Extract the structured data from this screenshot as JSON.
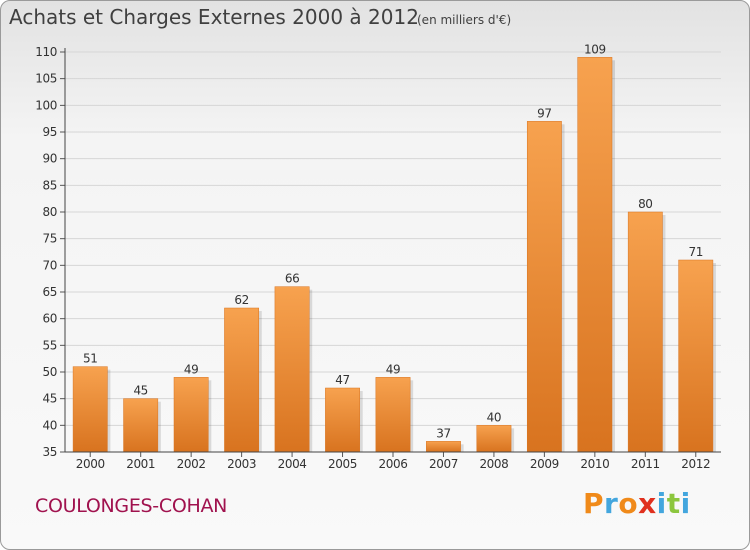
{
  "header": {
    "title": "Achats et Charges Externes 2000 à 2012",
    "subtitle": "(en milliers d'€)"
  },
  "footer": {
    "commune": "COULONGES-COHAN",
    "logo_text": "Proxiti"
  },
  "colors": {
    "bar_light": "#f7a24f",
    "bar_dark": "#d8731f",
    "commune": "#a0124e",
    "logo": [
      "#f08a1a",
      "#43a6de",
      "#f08a1a",
      "#e0301e",
      "#43a6de",
      "#8cc63e",
      "#43a6de"
    ]
  },
  "chart_data": {
    "type": "bar",
    "categories": [
      "2000",
      "2001",
      "2002",
      "2003",
      "2004",
      "2005",
      "2006",
      "2007",
      "2008",
      "2009",
      "2010",
      "2011",
      "2012"
    ],
    "values": [
      51,
      45,
      49,
      62,
      66,
      47,
      49,
      37,
      40,
      97,
      109,
      80,
      71
    ],
    "ylim": [
      35,
      110
    ],
    "yticks": [
      35,
      40,
      45,
      50,
      55,
      60,
      65,
      70,
      75,
      80,
      85,
      90,
      95,
      100,
      105,
      110
    ],
    "grid": true,
    "data_labels": true
  }
}
